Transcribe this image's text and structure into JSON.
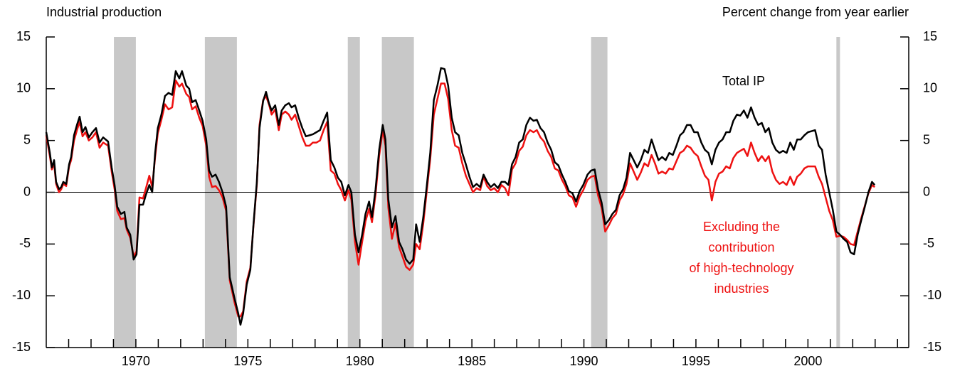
{
  "chart_data": {
    "type": "line",
    "y_axis_title": "Industrial production",
    "y2_axis_title": "Percent change from year earlier",
    "xlim": [
      1966,
      2004.5
    ],
    "xticks": [
      1970,
      1975,
      1980,
      1985,
      1990,
      1995,
      2000
    ],
    "xminorticks": [
      1967,
      1968,
      1969,
      1970,
      1971,
      1972,
      1973,
      1974,
      1975,
      1976,
      1977,
      1978,
      1979,
      1980,
      1981,
      1982,
      1983,
      1984,
      1985,
      1986,
      1987,
      1988,
      1989,
      1990,
      1991,
      1992,
      1993,
      1994,
      1995,
      1996,
      1997,
      1998,
      1999,
      2000,
      2001,
      2002,
      2003,
      2004
    ],
    "ylim": [
      -15,
      15
    ],
    "yticks": [
      -15,
      -10,
      -5,
      0,
      5,
      10,
      15
    ],
    "y2lim": [
      -15,
      15
    ],
    "y2ticks": [
      -15,
      -10,
      -5,
      0,
      5,
      10,
      15
    ],
    "zero_line": true,
    "recessions": [
      [
        1969.02,
        1970.0
      ],
      [
        1973.08,
        1974.51
      ],
      [
        1979.46,
        1980.0
      ],
      [
        1980.98,
        1982.41
      ],
      [
        1990.32,
        1991.05
      ],
      [
        2001.27,
        2001.43
      ]
    ],
    "recession_color": "#c8c8c8",
    "x": [
      1966.0,
      1966.16,
      1966.25,
      1966.35,
      1966.44,
      1966.57,
      1966.67,
      1966.76,
      1966.89,
      1967.02,
      1967.11,
      1967.24,
      1967.37,
      1967.49,
      1967.62,
      1967.75,
      1967.9,
      1968.06,
      1968.22,
      1968.38,
      1968.54,
      1968.76,
      1968.92,
      1969.05,
      1969.17,
      1969.33,
      1969.49,
      1969.59,
      1969.75,
      1969.9,
      1970.03,
      1970.16,
      1970.32,
      1970.44,
      1970.6,
      1970.73,
      1970.86,
      1970.98,
      1971.14,
      1971.3,
      1971.46,
      1971.62,
      1971.78,
      1971.94,
      1972.06,
      1972.25,
      1972.38,
      1972.51,
      1972.67,
      1972.83,
      1972.98,
      1973.14,
      1973.27,
      1973.4,
      1973.56,
      1973.71,
      1973.87,
      1974.03,
      1974.19,
      1974.41,
      1974.57,
      1974.67,
      1974.79,
      1974.95,
      1975.11,
      1975.24,
      1975.4,
      1975.52,
      1975.68,
      1975.81,
      1975.94,
      1976.06,
      1976.22,
      1976.38,
      1976.51,
      1976.67,
      1976.83,
      1976.95,
      1977.11,
      1977.27,
      1977.43,
      1977.59,
      1977.75,
      1977.9,
      1978.06,
      1978.22,
      1978.38,
      1978.54,
      1978.7,
      1978.86,
      1979.02,
      1979.17,
      1979.33,
      1979.49,
      1979.62,
      1979.78,
      1979.94,
      1980.1,
      1980.25,
      1980.41,
      1980.54,
      1980.7,
      1980.86,
      1981.02,
      1981.14,
      1981.27,
      1981.43,
      1981.59,
      1981.75,
      1981.9,
      1982.06,
      1982.22,
      1982.38,
      1982.51,
      1982.67,
      1982.83,
      1982.98,
      1983.14,
      1983.3,
      1983.46,
      1983.62,
      1983.78,
      1983.94,
      1984.1,
      1984.25,
      1984.41,
      1984.57,
      1984.73,
      1984.89,
      1985.05,
      1985.21,
      1985.37,
      1985.52,
      1985.68,
      1985.84,
      1986.0,
      1986.16,
      1986.32,
      1986.48,
      1986.63,
      1986.79,
      1986.95,
      1987.11,
      1987.27,
      1987.43,
      1987.59,
      1987.75,
      1987.9,
      1988.06,
      1988.22,
      1988.38,
      1988.54,
      1988.7,
      1988.86,
      1989.02,
      1989.17,
      1989.33,
      1989.49,
      1989.65,
      1989.81,
      1989.97,
      1990.16,
      1990.32,
      1990.48,
      1990.63,
      1990.79,
      1990.95,
      1991.11,
      1991.27,
      1991.43,
      1991.59,
      1991.75,
      1991.9,
      1992.06,
      1992.22,
      1992.38,
      1992.54,
      1992.7,
      1992.86,
      1993.02,
      1993.17,
      1993.33,
      1993.49,
      1993.65,
      1993.81,
      1993.97,
      1994.13,
      1994.29,
      1994.44,
      1994.6,
      1994.76,
      1994.92,
      1995.08,
      1995.24,
      1995.4,
      1995.56,
      1995.71,
      1995.87,
      1996.03,
      1996.19,
      1996.35,
      1996.51,
      1996.67,
      1996.83,
      1996.98,
      1997.14,
      1997.3,
      1997.46,
      1997.62,
      1997.78,
      1997.94,
      1998.1,
      1998.25,
      1998.41,
      1998.57,
      1998.73,
      1998.89,
      1999.05,
      1999.21,
      1999.37,
      1999.52,
      1999.68,
      1999.84,
      2000.0,
      2000.16,
      2000.32,
      2000.48,
      2000.63,
      2000.79,
      2000.95,
      2001.11,
      2001.27,
      2001.43,
      2001.59,
      2001.75,
      2001.9,
      2002.06,
      2002.22,
      2002.38,
      2002.54,
      2002.7,
      2002.86,
      2002.98
    ],
    "series": [
      {
        "label": [
          "Total IP"
        ],
        "color": "#000000",
        "values": [
          5.8,
          3.8,
          2.4,
          3.1,
          1.0,
          0.3,
          0.5,
          1.0,
          0.8,
          2.7,
          3.4,
          5.5,
          6.5,
          7.3,
          5.8,
          6.3,
          5.3,
          5.8,
          6.2,
          4.8,
          5.3,
          4.9,
          2.4,
          0.7,
          -1.4,
          -2.1,
          -1.9,
          -3.4,
          -4.1,
          -6.5,
          -6.0,
          -1.2,
          -1.2,
          -0.3,
          0.7,
          0,
          3.8,
          6.2,
          7.5,
          9.3,
          9.6,
          9.4,
          11.7,
          11.0,
          11.7,
          10.3,
          10.0,
          8.7,
          8.9,
          7.9,
          6.9,
          5.1,
          2.1,
          1.5,
          1.7,
          1.0,
          0,
          -1.4,
          -8.2,
          -10.3,
          -11.7,
          -12.8,
          -11.7,
          -8.9,
          -7.5,
          -3.4,
          1.0,
          6.2,
          8.8,
          9.7,
          8.6,
          7.9,
          8.4,
          6.5,
          7.9,
          8.4,
          8.6,
          8.2,
          8.4,
          7.2,
          6.2,
          5.4,
          5.5,
          5.6,
          5.8,
          6.0,
          6.9,
          7.7,
          3.1,
          2.4,
          1.4,
          1.0,
          -0.3,
          0.7,
          0,
          -4.1,
          -5.8,
          -4.1,
          -2.1,
          -0.9,
          -2.4,
          0.3,
          4.1,
          6.5,
          5.1,
          -0.7,
          -3.4,
          -2.3,
          -4.8,
          -5.5,
          -6.5,
          -6.9,
          -6.5,
          -3.1,
          -4.8,
          -2.4,
          0.5,
          3.8,
          8.9,
          10.3,
          12.0,
          11.9,
          10.3,
          7.2,
          5.8,
          5.5,
          3.8,
          2.7,
          1.5,
          0.5,
          0.8,
          0.5,
          1.7,
          1.0,
          0.5,
          0.8,
          0.4,
          1.0,
          1.0,
          0.7,
          2.7,
          3.4,
          4.8,
          5.1,
          6.5,
          7.2,
          6.9,
          7.0,
          6.2,
          5.8,
          4.8,
          4.1,
          2.9,
          2.6,
          1.7,
          1.0,
          0.1,
          -0.1,
          -0.9,
          0.1,
          0.7,
          1.7,
          2.1,
          2.2,
          0.3,
          -1.0,
          -3.1,
          -2.7,
          -2.1,
          -1.7,
          -0.3,
          0.3,
          1.4,
          3.8,
          3.1,
          2.4,
          3.1,
          4.1,
          3.8,
          5.1,
          4.1,
          3.1,
          3.4,
          3.1,
          3.8,
          3.6,
          4.5,
          5.5,
          5.8,
          6.5,
          6.5,
          5.8,
          5.8,
          4.8,
          4.1,
          3.8,
          2.7,
          4.1,
          4.8,
          5.1,
          5.8,
          5.8,
          6.9,
          7.5,
          7.4,
          7.9,
          7.2,
          8.2,
          7.2,
          6.5,
          6.7,
          5.8,
          6.2,
          4.8,
          4.1,
          3.8,
          4.0,
          3.8,
          4.8,
          4.1,
          5.1,
          5.1,
          5.5,
          5.8,
          5.9,
          6.0,
          4.5,
          4.1,
          1.7,
          0,
          -1.7,
          -3.8,
          -4.1,
          -4.5,
          -4.8,
          -5.8,
          -6.0,
          -4.1,
          -2.7,
          -1.4,
          0,
          1.0,
          0.7
        ]
      },
      {
        "label": [
          "Excluding the",
          "contribution",
          "of high-technology",
          "industries"
        ],
        "color": "#ee1111",
        "values": [
          5.5,
          3.5,
          2.2,
          2.8,
          0.8,
          0.0,
          0.3,
          0.8,
          0.6,
          2.5,
          3.1,
          5.0,
          6.0,
          6.8,
          5.4,
          5.8,
          5.0,
          5.3,
          5.8,
          4.3,
          4.8,
          4.5,
          2.0,
          0.3,
          -1.8,
          -2.6,
          -2.5,
          -3.6,
          -4.4,
          -6.2,
          -5.7,
          -0.5,
          -0.6,
          0.3,
          1.6,
          0.5,
          3.4,
          5.7,
          7.0,
          8.5,
          8.0,
          8.2,
          10.8,
          10.2,
          10.5,
          9.5,
          9.2,
          8.0,
          8.3,
          7.2,
          6.4,
          4.5,
          1.5,
          0.5,
          0.6,
          0.2,
          -0.5,
          -1.8,
          -8.5,
          -10.7,
          -12.0,
          -12.0,
          -11.5,
          -8.6,
          -7.3,
          -3.5,
          0.8,
          6.5,
          8.9,
          9.3,
          8.5,
          7.5,
          8.0,
          6.0,
          7.5,
          7.8,
          7.5,
          7.0,
          7.5,
          6.4,
          5.3,
          4.5,
          4.5,
          4.8,
          4.8,
          5.0,
          6.0,
          6.8,
          2.1,
          1.8,
          0.8,
          0.2,
          -0.8,
          0.2,
          -0.7,
          -4.8,
          -7.0,
          -4.8,
          -2.8,
          -1.6,
          -2.9,
          -0.2,
          3.5,
          6.0,
          4.5,
          -1.5,
          -4.5,
          -3.0,
          -5.3,
          -6.2,
          -7.2,
          -7.5,
          -7.0,
          -5.0,
          -5.5,
          -3.0,
          0.0,
          3.2,
          7.5,
          9.0,
          10.5,
          10.5,
          9.0,
          6.0,
          4.5,
          4.3,
          2.8,
          1.6,
          0.8,
          0.0,
          0.4,
          0.2,
          1.5,
          0.6,
          0.2,
          0.4,
          0.0,
          0.7,
          0.4,
          -0.3,
          2.2,
          2.8,
          4.0,
          4.4,
          5.5,
          6.0,
          5.8,
          6.0,
          5.3,
          4.9,
          4.0,
          3.4,
          2.3,
          2.1,
          1.2,
          0.6,
          -0.3,
          -0.5,
          -1.4,
          -0.4,
          0.2,
          1.2,
          1.5,
          1.6,
          -0.3,
          -1.5,
          -3.8,
          -3.2,
          -2.5,
          -2.1,
          -0.8,
          -0.2,
          0.8,
          2.8,
          2.0,
          1.2,
          1.9,
          2.8,
          2.5,
          3.6,
          2.8,
          1.8,
          2.0,
          1.8,
          2.3,
          2.2,
          3.0,
          3.8,
          4.0,
          4.5,
          4.3,
          3.8,
          3.5,
          2.5,
          1.6,
          1.2,
          -0.8,
          1.0,
          1.8,
          2.0,
          2.5,
          2.3,
          3.3,
          3.8,
          4.0,
          4.2,
          3.5,
          4.8,
          3.8,
          3.0,
          3.5,
          3.0,
          3.5,
          2.0,
          1.2,
          0.8,
          1.0,
          0.7,
          1.5,
          0.7,
          1.5,
          1.8,
          2.3,
          2.5,
          2.5,
          2.5,
          1.5,
          0.8,
          -0.5,
          -1.8,
          -2.7,
          -4.3,
          -4.2,
          -4.3,
          -4.6,
          -5.0,
          -5.1,
          -3.8,
          -2.5,
          -1.3,
          -0.1,
          0.7,
          0.5
        ]
      }
    ]
  }
}
